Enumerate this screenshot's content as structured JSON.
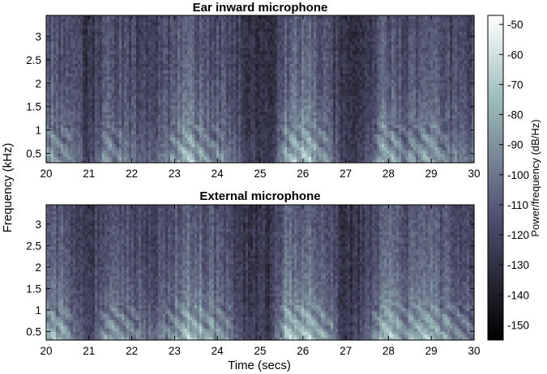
{
  "chart_data": [
    {
      "type": "heatmap",
      "title": "Ear inward microphone",
      "xlabel": "",
      "ylabel": "Frequency (kHz)",
      "xlim": [
        20,
        30
      ],
      "ylim": [
        0.3,
        3.45
      ],
      "xticks": [
        "20",
        "21",
        "22",
        "23",
        "24",
        "25",
        "26",
        "27",
        "28",
        "29",
        "30"
      ],
      "yticks": [
        "0.5",
        "1",
        "1.5",
        "2",
        "2.5",
        "3"
      ],
      "colormap": "bone",
      "clim": [
        -155,
        -47
      ],
      "speech_energy_by_time": [
        {
          "t": 20.0,
          "level": 0.65
        },
        {
          "t": 20.5,
          "level": 0.55
        },
        {
          "t": 21.0,
          "level": 0.15
        },
        {
          "t": 21.4,
          "level": 0.6
        },
        {
          "t": 21.9,
          "level": 0.45
        },
        {
          "t": 22.4,
          "level": 0.35
        },
        {
          "t": 22.8,
          "level": 0.45
        },
        {
          "t": 23.3,
          "level": 0.8
        },
        {
          "t": 23.8,
          "level": 0.6
        },
        {
          "t": 24.3,
          "level": 0.45
        },
        {
          "t": 24.7,
          "level": 0.2
        },
        {
          "t": 25.2,
          "level": 0.1
        },
        {
          "t": 25.6,
          "level": 0.7
        },
        {
          "t": 26.1,
          "level": 0.85
        },
        {
          "t": 26.6,
          "level": 0.5
        },
        {
          "t": 27.0,
          "level": 0.12
        },
        {
          "t": 27.5,
          "level": 0.3
        },
        {
          "t": 27.9,
          "level": 0.75
        },
        {
          "t": 28.4,
          "level": 0.55
        },
        {
          "t": 28.9,
          "level": 0.7
        },
        {
          "t": 29.4,
          "level": 0.5
        },
        {
          "t": 30.0,
          "level": 0.45
        }
      ]
    },
    {
      "type": "heatmap",
      "title": "External microphone",
      "xlabel": "Time (secs)",
      "ylabel": "Frequency (kHz)",
      "xlim": [
        20,
        30
      ],
      "ylim": [
        0.3,
        3.45
      ],
      "xticks": [
        "20",
        "21",
        "22",
        "23",
        "24",
        "25",
        "26",
        "27",
        "28",
        "29",
        "30"
      ],
      "yticks": [
        "0.5",
        "1",
        "1.5",
        "2",
        "2.5",
        "3"
      ],
      "colormap": "bone",
      "clim": [
        -155,
        -47
      ],
      "speech_energy_by_time": [
        {
          "t": 20.0,
          "level": 0.75
        },
        {
          "t": 20.5,
          "level": 0.65
        },
        {
          "t": 21.0,
          "level": 0.15
        },
        {
          "t": 21.4,
          "level": 0.7
        },
        {
          "t": 21.9,
          "level": 0.55
        },
        {
          "t": 22.4,
          "level": 0.45
        },
        {
          "t": 22.8,
          "level": 0.5
        },
        {
          "t": 23.3,
          "level": 0.85
        },
        {
          "t": 23.8,
          "level": 0.7
        },
        {
          "t": 24.3,
          "level": 0.5
        },
        {
          "t": 24.7,
          "level": 0.2
        },
        {
          "t": 25.2,
          "level": 0.1
        },
        {
          "t": 25.6,
          "level": 0.8
        },
        {
          "t": 26.1,
          "level": 0.9
        },
        {
          "t": 26.6,
          "level": 0.6
        },
        {
          "t": 27.0,
          "level": 0.12
        },
        {
          "t": 27.5,
          "level": 0.35
        },
        {
          "t": 27.9,
          "level": 0.85
        },
        {
          "t": 28.4,
          "level": 0.65
        },
        {
          "t": 28.9,
          "level": 0.8
        },
        {
          "t": 29.4,
          "level": 0.6
        },
        {
          "t": 30.0,
          "level": 0.5
        }
      ]
    }
  ],
  "colorbar": {
    "label": "Power/frequency (dB/Hz)",
    "ticks": [
      "-50",
      "-60",
      "-70",
      "-80",
      "-90",
      "-100",
      "-110",
      "-120",
      "-130",
      "-140",
      "-150"
    ],
    "tick_values": [
      -50,
      -60,
      -70,
      -80,
      -90,
      -100,
      -110,
      -120,
      -130,
      -140,
      -150
    ],
    "range": [
      -155,
      -47
    ]
  },
  "shared": {
    "ylabel": "Frequency (kHz)",
    "xlabel": "Time (secs)"
  }
}
